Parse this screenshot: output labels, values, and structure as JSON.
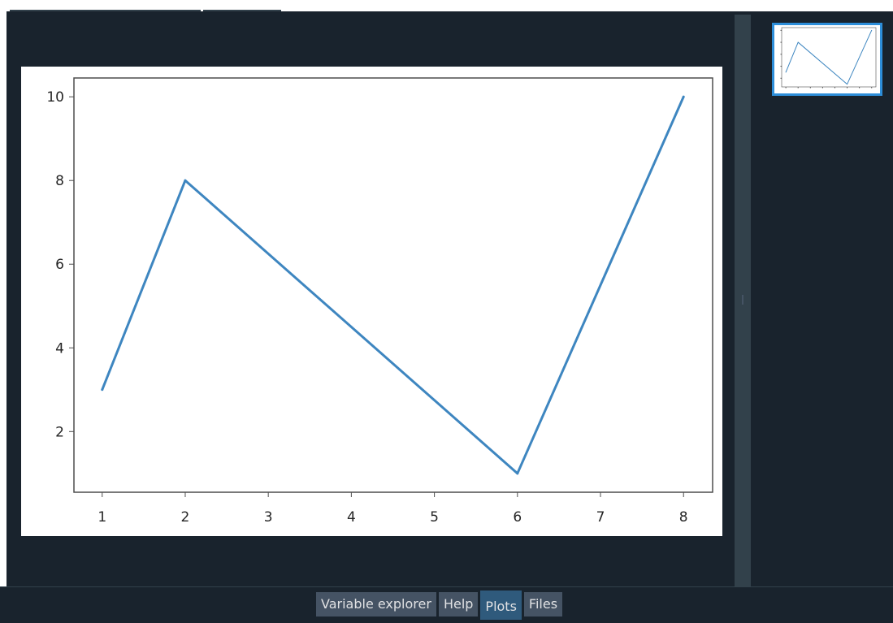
{
  "bottom_tabs": {
    "variable_explorer": "Variable explorer",
    "help": "Help",
    "plots": "Plots",
    "files": "Files",
    "active": "Plots"
  },
  "colors": {
    "background": "#19232d",
    "line": "#3e86c0",
    "thumbnail_border": "#2d8ed9",
    "active_tab": "#2f5a7c",
    "tab": "#455364"
  },
  "chart_data": {
    "type": "line",
    "x": [
      1,
      2,
      6,
      8
    ],
    "series": [
      {
        "values": [
          3,
          8,
          1,
          10
        ]
      }
    ],
    "xticks": [
      "1",
      "2",
      "3",
      "4",
      "5",
      "6",
      "7",
      "8"
    ],
    "yticks": [
      "2",
      "4",
      "6",
      "8",
      "10"
    ],
    "xlim": [
      0.66,
      8.35
    ],
    "ylim": [
      0.55,
      10.45
    ],
    "grid": false,
    "title": "",
    "xlabel": "",
    "ylabel": ""
  }
}
